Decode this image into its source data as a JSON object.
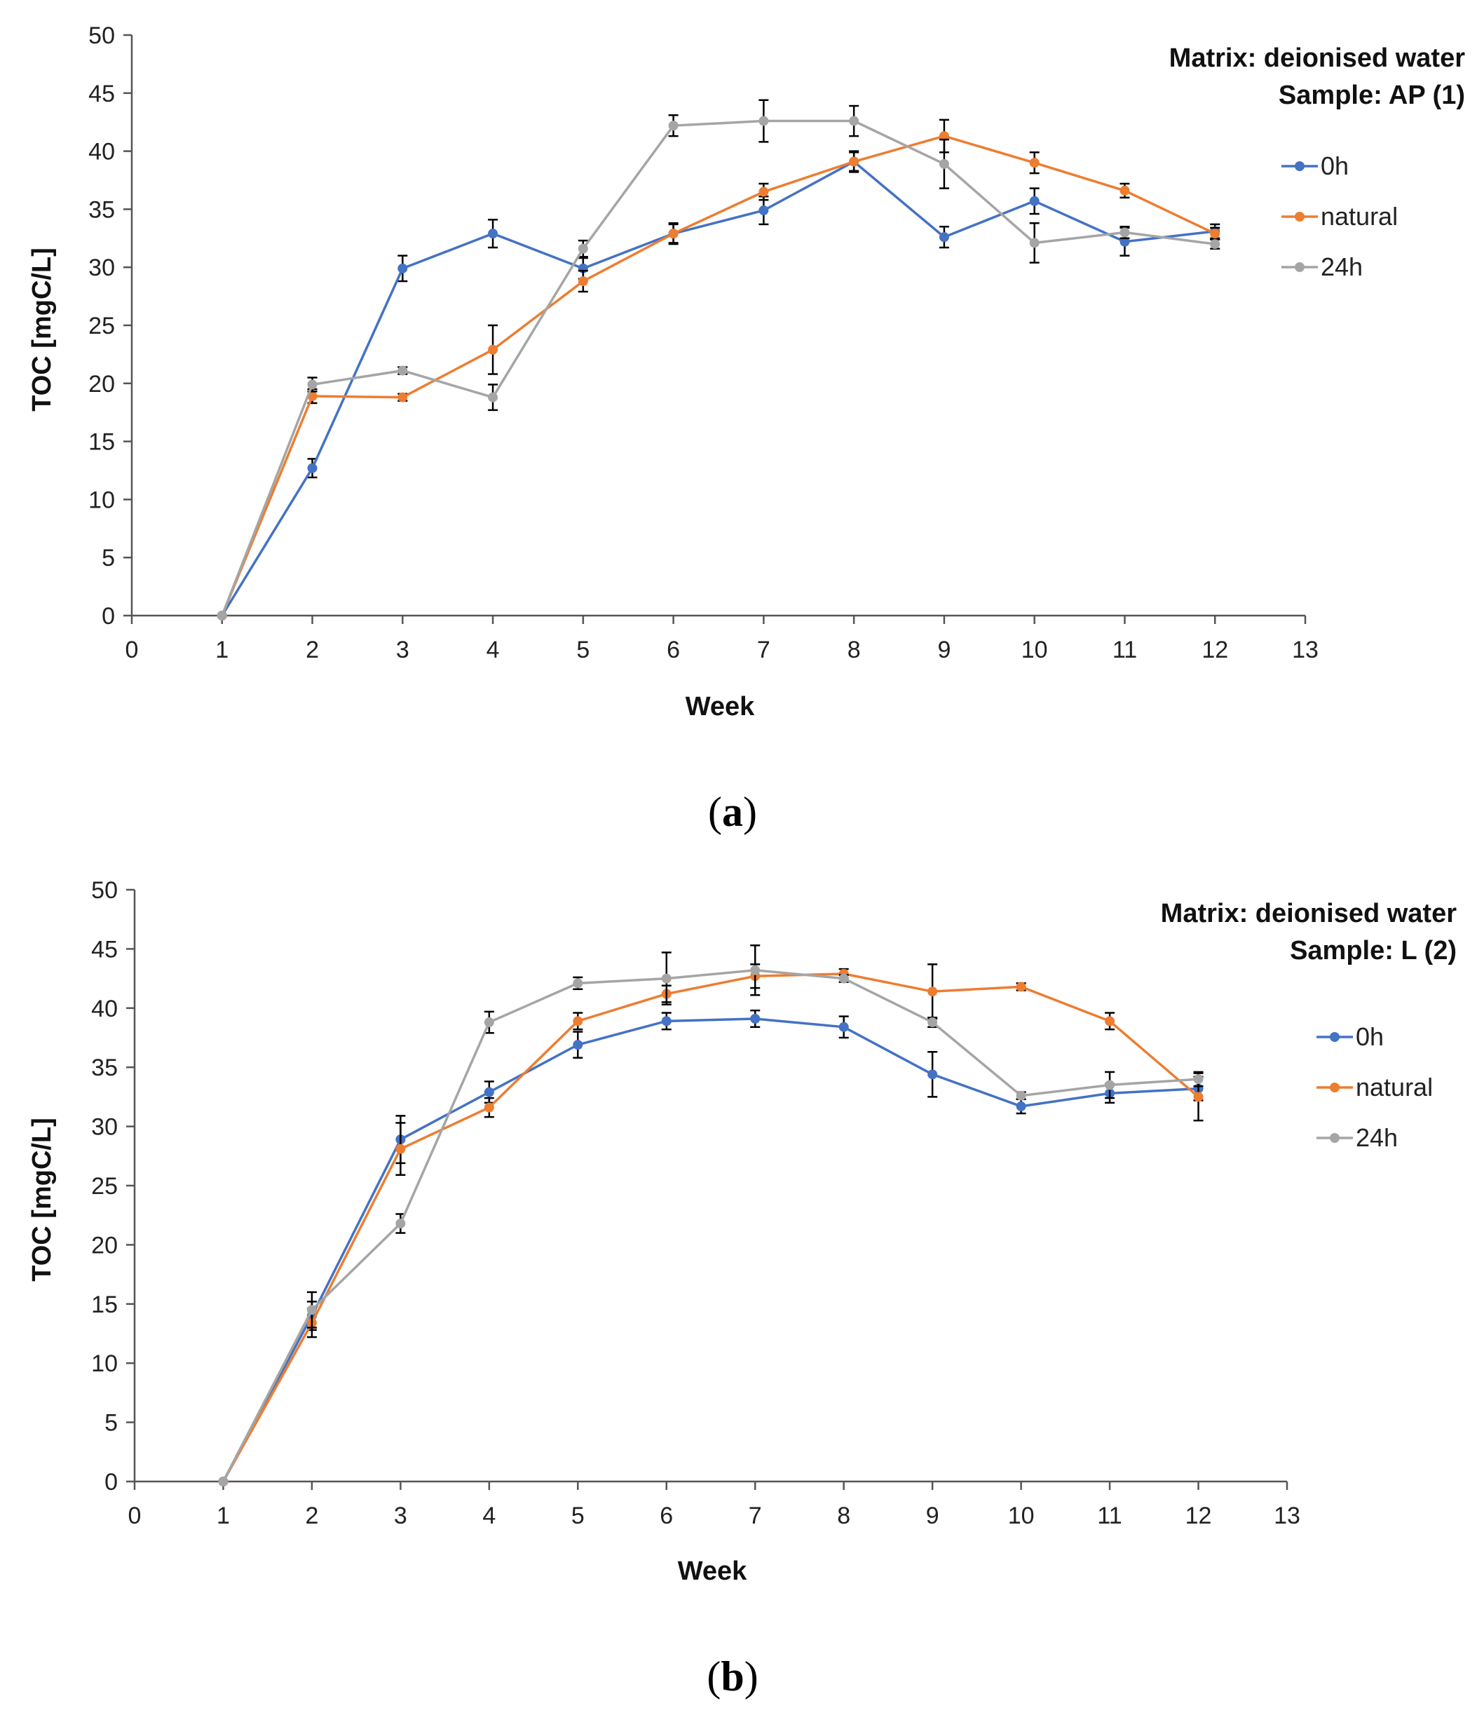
{
  "chart_data": [
    {
      "type": "line",
      "panel_caption": "a",
      "annotation_lines": [
        "Matrix: deionised water",
        "Sample: AP (1)"
      ],
      "xlabel": "Week",
      "ylabel": "TOC [mgC/L]",
      "xlim": [
        0,
        13
      ],
      "ylim": [
        0,
        50
      ],
      "x_ticks": [
        0,
        1,
        2,
        3,
        4,
        5,
        6,
        7,
        8,
        9,
        10,
        11,
        12,
        13
      ],
      "y_ticks": [
        0,
        5,
        10,
        15,
        20,
        25,
        30,
        35,
        40,
        45,
        50
      ],
      "grid": false,
      "legend_position": "right",
      "x": [
        1,
        2,
        3,
        4,
        5,
        6,
        7,
        8,
        9,
        10,
        11,
        12
      ],
      "series": [
        {
          "name": "0h",
          "color": "#4472C4",
          "values": [
            0,
            12.7,
            29.9,
            32.9,
            29.9,
            32.9,
            34.9,
            39.1,
            32.6,
            35.7,
            32.2,
            33.1
          ],
          "errors": [
            0,
            0.8,
            1.1,
            1.2,
            0.9,
            0.8,
            1.2,
            0.9,
            0.9,
            1.1,
            1.2,
            0.6
          ]
        },
        {
          "name": "natural",
          "color": "#ED7D31",
          "values": [
            0,
            18.9,
            18.8,
            22.9,
            28.8,
            32.9,
            36.5,
            39.1,
            41.3,
            39.0,
            36.6,
            32.9
          ],
          "errors": [
            0,
            0.6,
            0.3,
            2.1,
            0.9,
            0.9,
            0.7,
            0.8,
            1.4,
            0.9,
            0.6,
            0.5
          ]
        },
        {
          "name": "24h",
          "color": "#A5A5A5",
          "values": [
            0,
            19.9,
            21.1,
            18.8,
            31.6,
            42.2,
            42.6,
            42.6,
            38.9,
            32.1,
            33.0,
            32.0
          ],
          "errors": [
            0,
            0.6,
            0.3,
            1.1,
            0.7,
            0.9,
            1.8,
            1.3,
            2.1,
            1.7,
            0.5,
            0.4
          ]
        }
      ]
    },
    {
      "type": "line",
      "panel_caption": "b",
      "annotation_lines": [
        "Matrix: deionised water",
        "Sample: L (2)"
      ],
      "xlabel": "Week",
      "ylabel": "TOC [mgC/L]",
      "xlim": [
        0,
        13
      ],
      "ylim": [
        0,
        50
      ],
      "x_ticks": [
        0,
        1,
        2,
        3,
        4,
        5,
        6,
        7,
        8,
        9,
        10,
        11,
        12,
        13
      ],
      "y_ticks": [
        0,
        5,
        10,
        15,
        20,
        25,
        30,
        35,
        40,
        45,
        50
      ],
      "grid": false,
      "legend_position": "right",
      "x": [
        1,
        2,
        3,
        4,
        5,
        6,
        7,
        8,
        9,
        10,
        11,
        12
      ],
      "series": [
        {
          "name": "0h",
          "color": "#4472C4",
          "values": [
            0,
            14.0,
            28.9,
            32.9,
            36.9,
            38.9,
            39.1,
            38.4,
            34.4,
            31.7,
            32.8,
            33.2
          ],
          "errors": [
            0,
            1.2,
            2.0,
            0.9,
            1.1,
            0.7,
            0.7,
            0.9,
            1.9,
            0.6,
            0.8,
            1.0
          ]
        },
        {
          "name": "natural",
          "color": "#ED7D31",
          "values": [
            0,
            13.4,
            28.1,
            31.6,
            38.9,
            41.2,
            42.7,
            42.9,
            41.4,
            41.8,
            38.9,
            32.5
          ],
          "errors": [
            0,
            1.2,
            2.2,
            0.8,
            0.7,
            0.7,
            1.0,
            0.4,
            2.3,
            0.3,
            0.7,
            2.0
          ]
        },
        {
          "name": "24h",
          "color": "#A5A5A5",
          "values": [
            0,
            14.5,
            21.8,
            38.8,
            42.1,
            42.5,
            43.2,
            42.5,
            38.8,
            32.6,
            33.5,
            34.0
          ],
          "errors": [
            0,
            1.5,
            0.8,
            0.9,
            0.5,
            2.2,
            2.1,
            0.3,
            0.4,
            0.3,
            1.1,
            0.6
          ]
        }
      ]
    }
  ]
}
